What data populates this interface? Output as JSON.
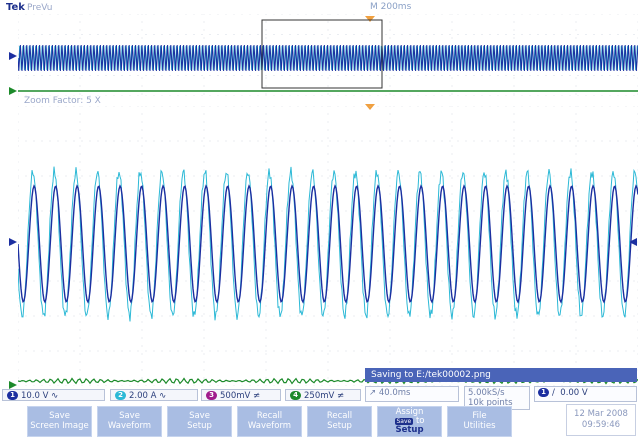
{
  "header": {
    "brand": "Tek",
    "mode": "PreVu",
    "timebase": "M 200ms"
  },
  "zoom": {
    "factor_label": "Zoom Factor: 5 X"
  },
  "channels": [
    {
      "num": "1",
      "scale": "10.0 V",
      "coupling": "∿",
      "color": "#1c2fa0"
    },
    {
      "num": "2",
      "scale": "2.00 A",
      "coupling": "∿",
      "color": "#2cb9d6"
    },
    {
      "num": "3",
      "scale": "500mV",
      "coupling": "≠",
      "color": "#a01c8c"
    },
    {
      "num": "4",
      "scale": "250mV",
      "coupling": "≠",
      "color": "#1c8a2a"
    }
  ],
  "status": {
    "saving_message": "Saving to E:/tek00002.png",
    "position": "40.0ms",
    "sample_rate": "5.00kS/s",
    "record_length": "10k points",
    "trigger_channel": "1",
    "trigger_slope": "/",
    "trigger_level": "0.00 V"
  },
  "menu": {
    "buttons": [
      {
        "line1": "Save",
        "line2": "Screen Image"
      },
      {
        "line1": "Save",
        "line2": "Waveform"
      },
      {
        "line1": "Save",
        "line2": "Setup"
      },
      {
        "line1": "Recall",
        "line2": "Waveform"
      },
      {
        "line1": "Recall",
        "line2": "Setup"
      },
      {
        "line1": "Assign",
        "line2": "Save",
        "line3": "to",
        "line4": "Setup"
      },
      {
        "line1": "File",
        "line2": "Utilities"
      }
    ]
  },
  "clock": {
    "date": "12 Mar 2008",
    "time": "09:59:46"
  },
  "colors": {
    "ch1": "#1c2fa0",
    "ch2": "#2cb9d6",
    "ch4": "#1c8a2a",
    "trigger": "#f0a040",
    "menu": "#a9bde3"
  }
}
